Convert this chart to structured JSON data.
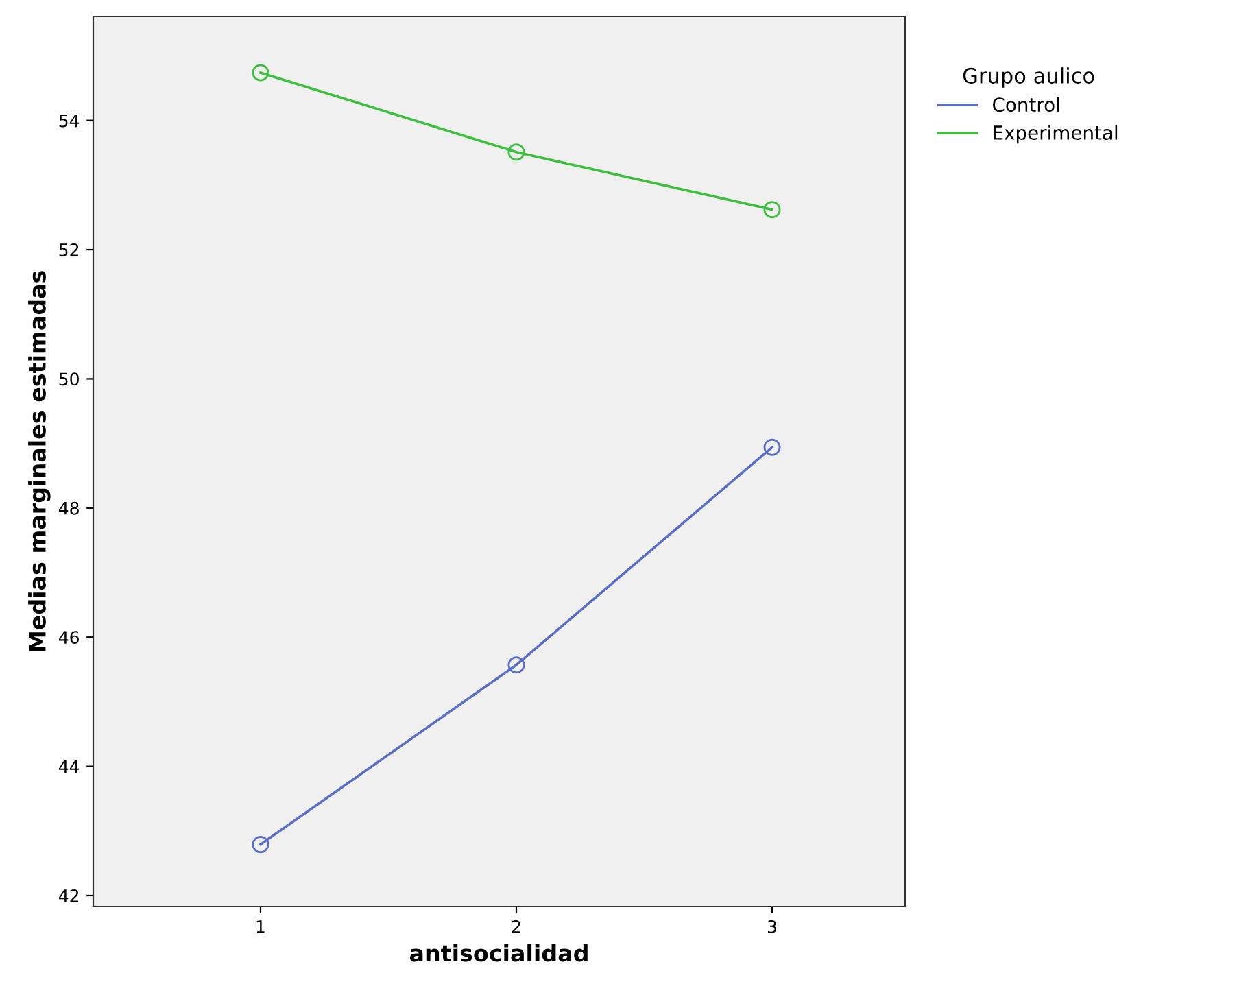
{
  "chart_data": {
    "type": "line",
    "xlabel": "antisocialidad",
    "ylabel": "Medias marginales estimadas",
    "legend_title": "Grupo aulico",
    "categories": [
      "1",
      "2",
      "3"
    ],
    "series": [
      {
        "name": "Control",
        "color": "#5a6fc4",
        "values": [
          42.79,
          45.57,
          48.94
        ]
      },
      {
        "name": "Experimental",
        "color": "#3fbf3f",
        "values": [
          54.74,
          53.51,
          52.62
        ]
      }
    ],
    "ylim": [
      41.83,
      55.61
    ],
    "yticks": [
      42,
      44,
      46,
      48,
      50,
      52,
      54
    ],
    "grid": false,
    "legend": "right",
    "marker": "circle",
    "line_style": "solid"
  }
}
